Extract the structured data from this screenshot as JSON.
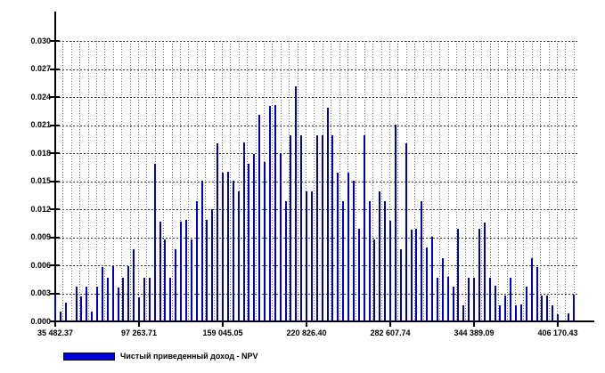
{
  "chart_data": {
    "type": "bar",
    "title": "",
    "subtitle": "",
    "legend_position": "bottom-left",
    "grid": "dotted",
    "legend": [
      {
        "label": "Чистый приведенный доход - NPV",
        "color": "#0000dd"
      }
    ],
    "y_axis": {
      "min": 0,
      "max": 0.03,
      "step": 0.003,
      "tick_labels": [
        "0.000",
        "0.003",
        "0.006",
        "0.009",
        "0.012",
        "0.015",
        "0.018",
        "0.021",
        "0.024",
        "0.027",
        "0.030"
      ]
    },
    "x_axis": {
      "tick_labels": [
        "35 482.37",
        "97 263.71",
        "159 045.05",
        "220 826.40",
        "282 607.74",
        "344 389.09",
        "406 170.43"
      ],
      "tick_values": [
        35482.37,
        97263.71,
        159045.05,
        220826.4,
        282607.74,
        344389.09,
        406170.43
      ],
      "bin_start": 35482.37,
      "bin_step": 3861.33
    },
    "values": [
      0.003,
      0.001,
      0.002,
      0.0,
      0.0037,
      0.0027,
      0.0037,
      0.001,
      0.0037,
      0.0058,
      0.0047,
      0.0059,
      0.0036,
      0.0047,
      0.0059,
      0.0077,
      0.0026,
      0.0047,
      0.0047,
      0.0169,
      0.0107,
      0.0088,
      0.0047,
      0.0077,
      0.0107,
      0.0109,
      0.0088,
      0.0129,
      0.015,
      0.0109,
      0.012,
      0.019,
      0.0159,
      0.016,
      0.015,
      0.0139,
      0.0191,
      0.0169,
      0.0179,
      0.0221,
      0.017,
      0.023,
      0.0231,
      0.018,
      0.0129,
      0.0199,
      0.0251,
      0.0199,
      0.0139,
      0.0139,
      0.0199,
      0.0199,
      0.0229,
      0.0199,
      0.0159,
      0.0129,
      0.0159,
      0.015,
      0.0099,
      0.0199,
      0.0129,
      0.0088,
      0.0139,
      0.0129,
      0.0108,
      0.021,
      0.0077,
      0.019,
      0.0098,
      0.0099,
      0.0129,
      0.0079,
      0.009,
      0.0047,
      0.0068,
      0.0048,
      0.0037,
      0.0099,
      0.0017,
      0.0047,
      0.0047,
      0.0099,
      0.0106,
      0.0047,
      0.0038,
      0.0017,
      0.0028,
      0.0047,
      0.0017,
      0.0018,
      0.0037,
      0.0068,
      0.0058,
      0.0028,
      0.0028,
      0.0017,
      0.0008,
      0.0,
      0.0009,
      0.0029
    ]
  }
}
